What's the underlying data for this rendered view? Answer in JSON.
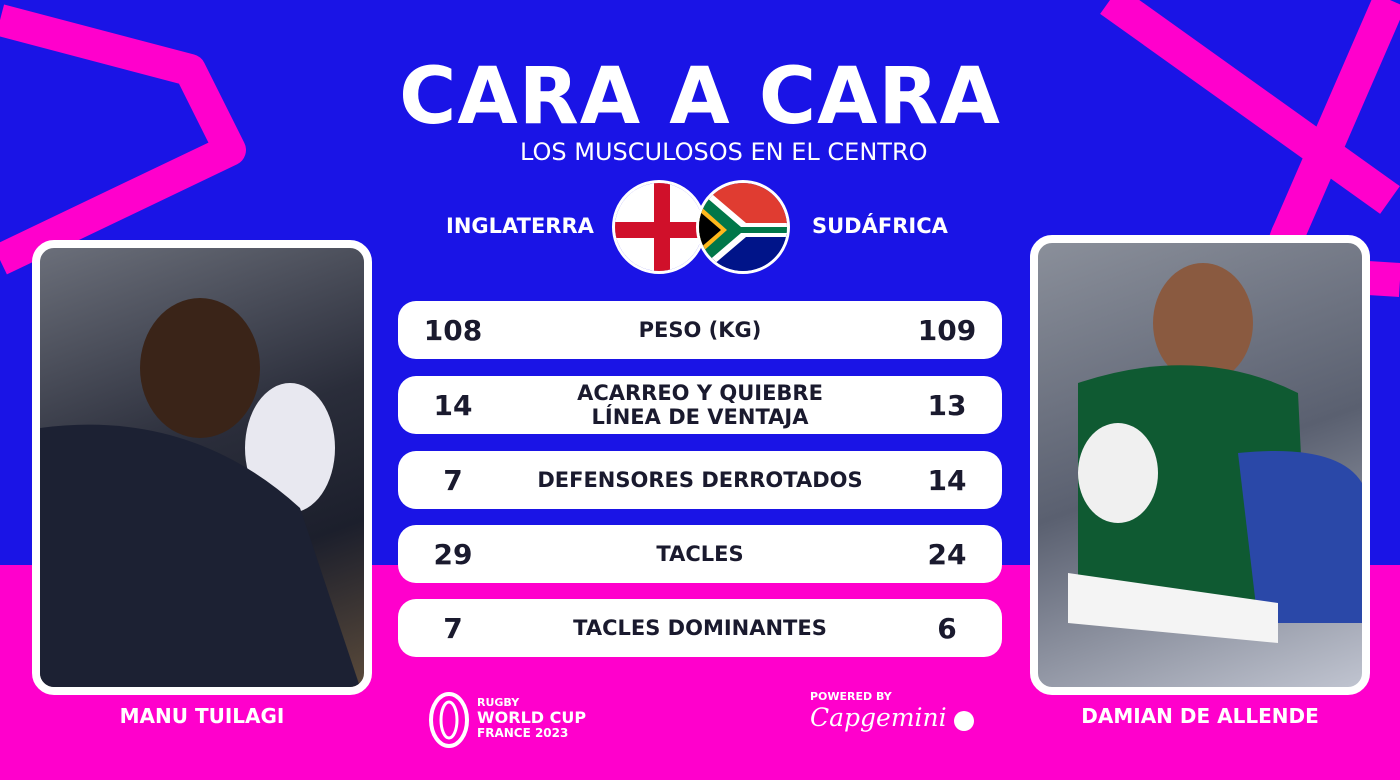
{
  "header": {
    "title": "CARA A CARA",
    "subtitle": "LOS MUSCULOSOS EN EL CENTRO"
  },
  "teams": {
    "left": "INGLATERRA",
    "right": "SUDÁFRICA"
  },
  "stats": [
    {
      "left": "108",
      "label": "PESO (KG)",
      "right": "109"
    },
    {
      "left": "14",
      "label": "ACARREO Y QUIEBRE LÍNEA DE VENTAJA",
      "right": "13"
    },
    {
      "left": "7",
      "label": "DEFENSORES DERROTADOS",
      "right": "14"
    },
    {
      "left": "29",
      "label": "TACLES",
      "right": "24"
    },
    {
      "left": "7",
      "label": "TACLES DOMINANTES",
      "right": "6"
    }
  ],
  "players": {
    "left": "MANU TUILAGI",
    "right": "DAMIAN DE ALLENDE"
  },
  "footer": {
    "rwc_line1": "RUGBY",
    "rwc_line2": "WORLD CUP",
    "rwc_line3": "FRANCE 2023",
    "powered": "POWERED BY",
    "sponsor": "Capgemini"
  },
  "colors": {
    "blue": "#1a14e6",
    "pink": "#ff00cc"
  }
}
